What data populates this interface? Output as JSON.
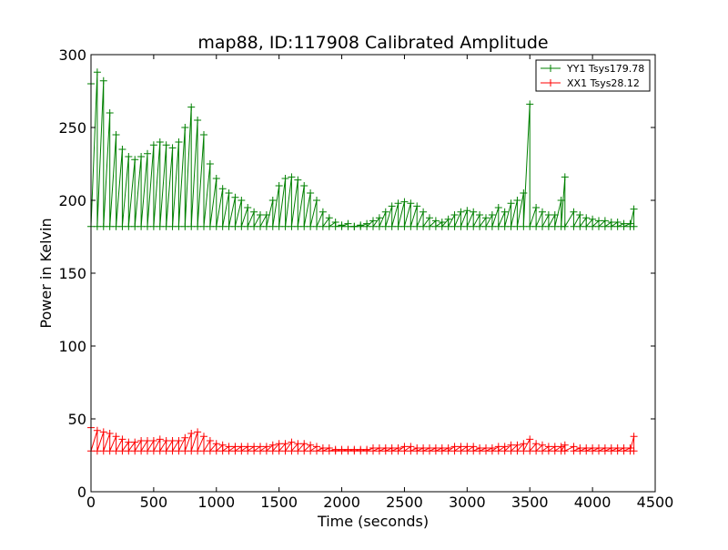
{
  "chart_data": {
    "type": "line",
    "title": "map88, ID:117908 Calibrated Amplitude",
    "xlabel": "Time (seconds)",
    "ylabel": "Power in Kelvin",
    "xlim": [
      0,
      4500
    ],
    "ylim": [
      0,
      300
    ],
    "xticks": [
      0,
      500,
      1000,
      1500,
      2000,
      2500,
      3000,
      3500,
      4000,
      4500
    ],
    "yticks": [
      0,
      50,
      100,
      150,
      200,
      250,
      300
    ],
    "grid": false,
    "legend_position": "top-right",
    "marker": "+",
    "series": [
      {
        "name": "YY1 Tsys179.78",
        "color": "#008000",
        "baseline": 182,
        "x": [
          0,
          50,
          100,
          150,
          200,
          250,
          300,
          350,
          400,
          450,
          500,
          550,
          600,
          650,
          700,
          750,
          800,
          850,
          900,
          950,
          1000,
          1050,
          1100,
          1150,
          1200,
          1250,
          1300,
          1350,
          1400,
          1450,
          1500,
          1550,
          1600,
          1650,
          1700,
          1750,
          1800,
          1850,
          1900,
          1950,
          2000,
          2050,
          2100,
          2150,
          2200,
          2250,
          2300,
          2350,
          2400,
          2450,
          2500,
          2550,
          2600,
          2650,
          2700,
          2750,
          2800,
          2850,
          2900,
          2950,
          3000,
          3050,
          3100,
          3150,
          3200,
          3250,
          3300,
          3350,
          3400,
          3450,
          3500,
          3550,
          3600,
          3650,
          3700,
          3750,
          3780,
          3850,
          3900,
          3950,
          4000,
          4050,
          4100,
          4150,
          4200,
          4250,
          4300,
          4330
        ],
        "y": [
          280,
          288,
          282,
          260,
          245,
          235,
          230,
          228,
          230,
          232,
          238,
          240,
          238,
          236,
          240,
          250,
          264,
          255,
          245,
          225,
          215,
          208,
          205,
          202,
          200,
          195,
          192,
          190,
          190,
          200,
          210,
          215,
          216,
          214,
          210,
          205,
          200,
          192,
          188,
          185,
          183,
          184,
          182,
          183,
          184,
          186,
          188,
          192,
          196,
          198,
          199,
          198,
          196,
          192,
          188,
          186,
          185,
          187,
          190,
          192,
          193,
          192,
          190,
          188,
          190,
          195,
          192,
          198,
          200,
          205,
          266,
          195,
          192,
          190,
          190,
          200,
          216,
          192,
          190,
          188,
          187,
          186,
          186,
          185,
          185,
          184,
          184,
          194
        ]
      },
      {
        "name": "XX1 Tsys28.12",
        "color": "#ff0000",
        "baseline": 28,
        "x": [
          0,
          50,
          100,
          150,
          200,
          250,
          300,
          350,
          400,
          450,
          500,
          550,
          600,
          650,
          700,
          750,
          800,
          850,
          900,
          950,
          1000,
          1050,
          1100,
          1150,
          1200,
          1250,
          1300,
          1350,
          1400,
          1450,
          1500,
          1550,
          1600,
          1650,
          1700,
          1750,
          1800,
          1850,
          1900,
          1950,
          2000,
          2050,
          2100,
          2150,
          2200,
          2250,
          2300,
          2350,
          2400,
          2450,
          2500,
          2550,
          2600,
          2650,
          2700,
          2750,
          2800,
          2850,
          2900,
          2950,
          3000,
          3050,
          3100,
          3150,
          3200,
          3250,
          3300,
          3350,
          3400,
          3450,
          3500,
          3550,
          3600,
          3650,
          3700,
          3750,
          3780,
          3850,
          3900,
          3950,
          4000,
          4050,
          4100,
          4150,
          4200,
          4250,
          4300,
          4330
        ],
        "y": [
          44,
          42,
          41,
          40,
          38,
          36,
          34,
          34,
          35,
          35,
          35,
          36,
          35,
          35,
          35,
          37,
          40,
          41,
          38,
          35,
          33,
          32,
          31,
          31,
          31,
          31,
          31,
          31,
          31,
          32,
          33,
          33,
          34,
          33,
          33,
          32,
          31,
          30,
          30,
          29,
          29,
          29,
          29,
          29,
          29,
          30,
          30,
          30,
          30,
          30,
          31,
          31,
          30,
          30,
          30,
          30,
          30,
          30,
          31,
          31,
          31,
          31,
          30,
          30,
          30,
          31,
          31,
          32,
          32,
          33,
          36,
          33,
          32,
          31,
          31,
          31,
          32,
          31,
          30,
          30,
          30,
          30,
          30,
          30,
          30,
          30,
          30,
          38
        ]
      }
    ]
  }
}
